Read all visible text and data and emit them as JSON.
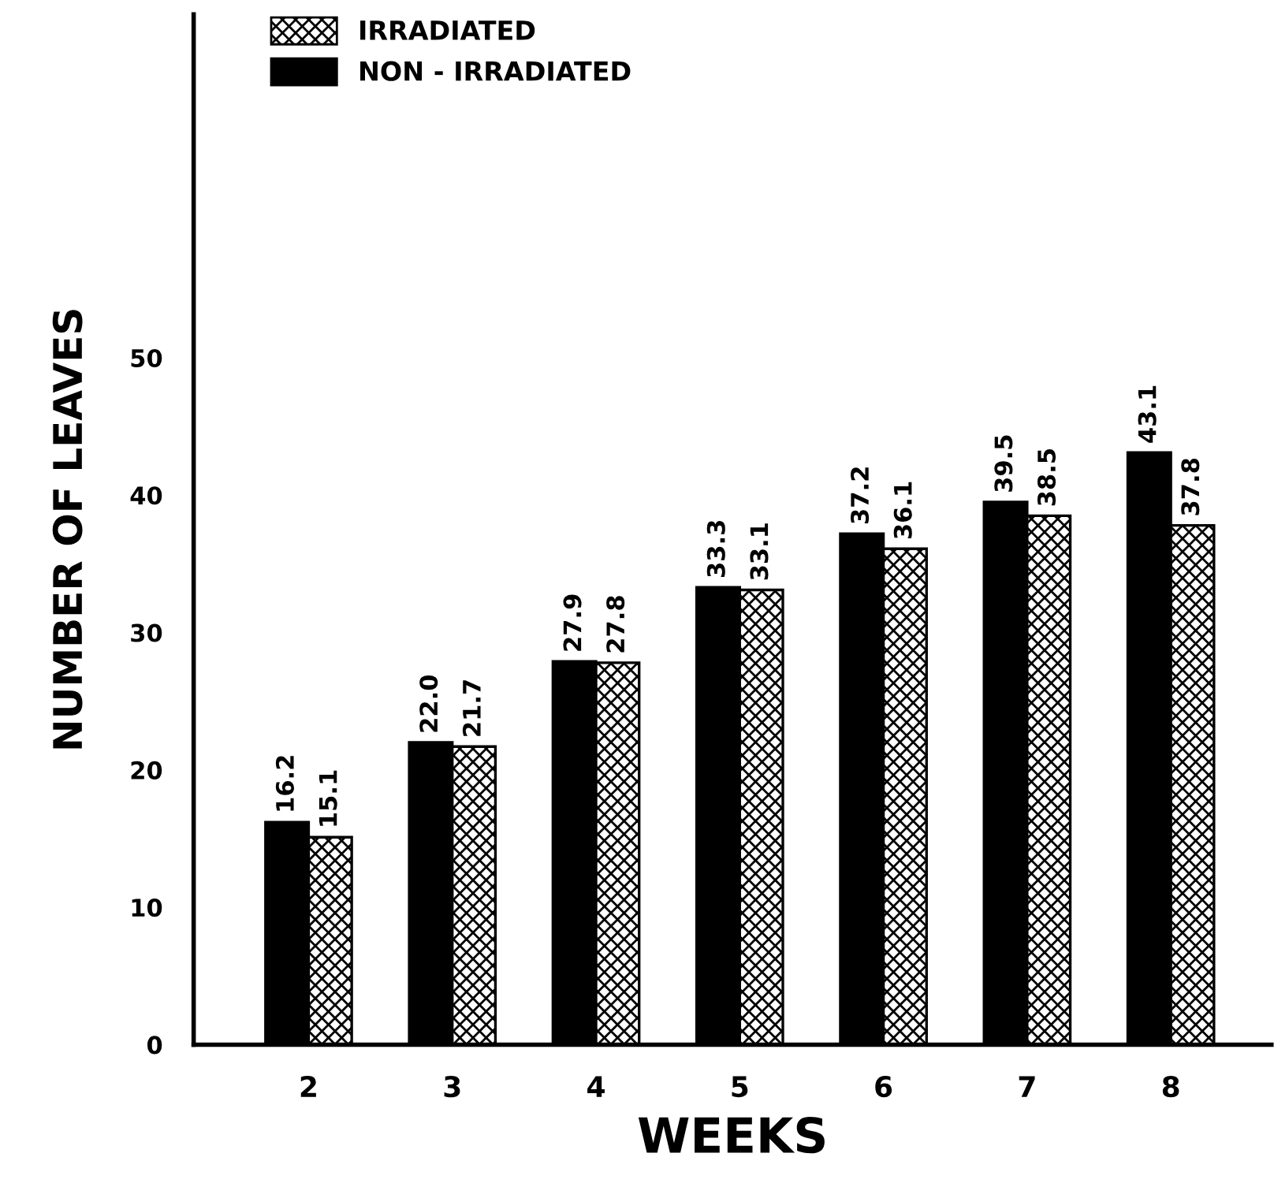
{
  "chart_data": {
    "type": "bar",
    "xlabel": "WEEKS",
    "ylabel": "NUMBER OF LEAVES",
    "categories": [
      "2",
      "3",
      "4",
      "5",
      "6",
      "7",
      "8"
    ],
    "series": [
      {
        "name": "NON - IRRADIATED",
        "color": "#000000",
        "values": [
          16.2,
          22.0,
          27.9,
          33.3,
          37.2,
          39.5,
          43.1
        ],
        "value_labels": [
          "16.2",
          "22.0",
          "27.9",
          "33.3",
          "37.2",
          "39.5",
          "43.1"
        ]
      },
      {
        "name": "IRRADIATED",
        "color": "#000000",
        "values": [
          15.1,
          21.7,
          27.8,
          33.1,
          36.1,
          38.5,
          37.8
        ],
        "value_labels": [
          "15.1",
          "21.7",
          "27.8",
          "33.1",
          "36.1",
          "38.5",
          "37.8"
        ]
      }
    ],
    "ylim": [
      0,
      75
    ],
    "yticks": [
      0,
      10,
      20,
      30,
      40,
      50
    ],
    "grid": false,
    "legend": "top left"
  }
}
